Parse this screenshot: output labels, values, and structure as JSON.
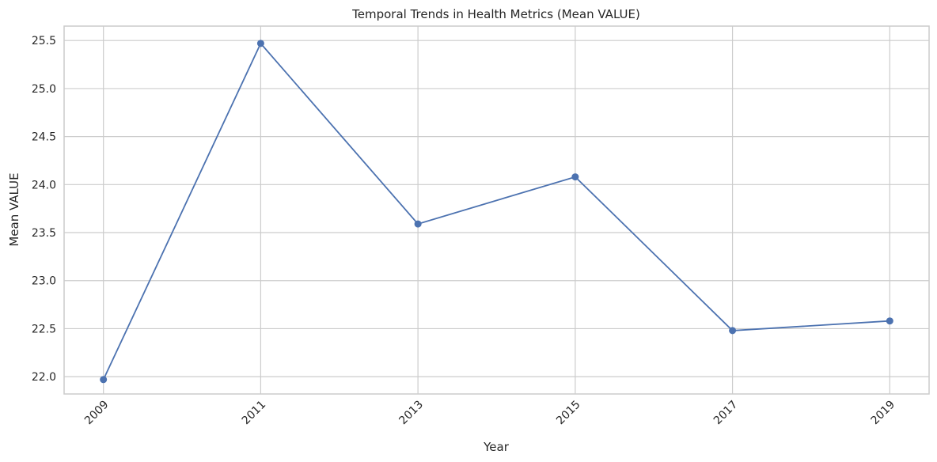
{
  "chart_data": {
    "type": "line",
    "title": "Temporal Trends in Health Metrics (Mean VALUE)",
    "xlabel": "Year",
    "ylabel": "Mean VALUE",
    "x": [
      2009,
      2011,
      2013,
      2015,
      2017,
      2019
    ],
    "xticks": [
      "2009",
      "2011",
      "2013",
      "2015",
      "2017",
      "2019"
    ],
    "yticks": [
      "22.0",
      "22.5",
      "23.0",
      "23.5",
      "24.0",
      "24.5",
      "25.0",
      "25.5"
    ],
    "xlim": [
      2008.5,
      2019.5
    ],
    "ylim": [
      21.82,
      25.65
    ],
    "grid": true,
    "series": [
      {
        "color": "#4c72b0",
        "marker": "circle",
        "values": [
          21.97,
          25.47,
          23.59,
          24.08,
          22.48,
          22.58
        ]
      }
    ]
  }
}
